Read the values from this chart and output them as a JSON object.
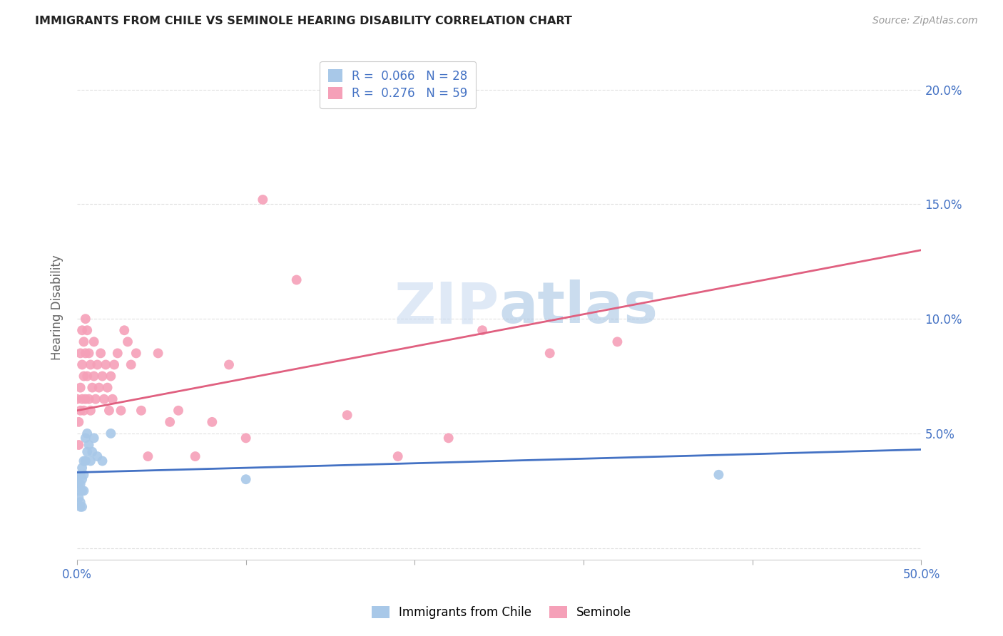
{
  "title": "IMMIGRANTS FROM CHILE VS SEMINOLE HEARING DISABILITY CORRELATION CHART",
  "source": "Source: ZipAtlas.com",
  "ylabel": "Hearing Disability",
  "xlim": [
    0.0,
    0.5
  ],
  "ylim": [
    -0.005,
    0.215
  ],
  "xticks": [
    0.0,
    0.1,
    0.2,
    0.3,
    0.4,
    0.5
  ],
  "xticklabels_show": [
    "0.0%",
    "",
    "",
    "",
    "",
    "50.0%"
  ],
  "yticks_right": [
    0.05,
    0.1,
    0.15,
    0.2
  ],
  "yticklabels_right": [
    "5.0%",
    "10.0%",
    "15.0%",
    "20.0%"
  ],
  "grid_yticks": [
    0.0,
    0.05,
    0.1,
    0.15,
    0.2
  ],
  "legend_r_chile": "0.066",
  "legend_n_chile": "28",
  "legend_r_seminole": "0.276",
  "legend_n_seminole": "59",
  "chile_color": "#a8c8e8",
  "seminole_color": "#f5a0b8",
  "chile_line_color": "#4472c4",
  "seminole_line_color": "#e06080",
  "watermark_part1": "ZIP",
  "watermark_part2": "atlas",
  "chile_scatter_x": [
    0.0,
    0.001,
    0.001,
    0.001,
    0.002,
    0.002,
    0.002,
    0.002,
    0.003,
    0.003,
    0.003,
    0.003,
    0.004,
    0.004,
    0.004,
    0.005,
    0.005,
    0.006,
    0.006,
    0.007,
    0.008,
    0.009,
    0.01,
    0.012,
    0.015,
    0.02,
    0.1,
    0.38
  ],
  "chile_scatter_y": [
    0.03,
    0.028,
    0.025,
    0.022,
    0.032,
    0.028,
    0.02,
    0.018,
    0.035,
    0.03,
    0.025,
    0.018,
    0.038,
    0.032,
    0.025,
    0.048,
    0.038,
    0.05,
    0.042,
    0.045,
    0.038,
    0.042,
    0.048,
    0.04,
    0.038,
    0.05,
    0.03,
    0.032
  ],
  "seminole_scatter_x": [
    0.0,
    0.001,
    0.001,
    0.002,
    0.002,
    0.002,
    0.003,
    0.003,
    0.003,
    0.004,
    0.004,
    0.004,
    0.005,
    0.005,
    0.005,
    0.006,
    0.006,
    0.007,
    0.007,
    0.008,
    0.008,
    0.009,
    0.01,
    0.01,
    0.011,
    0.012,
    0.013,
    0.014,
    0.015,
    0.016,
    0.017,
    0.018,
    0.019,
    0.02,
    0.021,
    0.022,
    0.024,
    0.026,
    0.028,
    0.03,
    0.032,
    0.035,
    0.038,
    0.042,
    0.048,
    0.055,
    0.06,
    0.07,
    0.08,
    0.09,
    0.1,
    0.11,
    0.13,
    0.16,
    0.19,
    0.22,
    0.24,
    0.28,
    0.32
  ],
  "seminole_scatter_y": [
    0.065,
    0.055,
    0.045,
    0.085,
    0.07,
    0.06,
    0.095,
    0.08,
    0.065,
    0.09,
    0.075,
    0.06,
    0.1,
    0.085,
    0.065,
    0.095,
    0.075,
    0.085,
    0.065,
    0.08,
    0.06,
    0.07,
    0.09,
    0.075,
    0.065,
    0.08,
    0.07,
    0.085,
    0.075,
    0.065,
    0.08,
    0.07,
    0.06,
    0.075,
    0.065,
    0.08,
    0.085,
    0.06,
    0.095,
    0.09,
    0.08,
    0.085,
    0.06,
    0.04,
    0.085,
    0.055,
    0.06,
    0.04,
    0.055,
    0.08,
    0.048,
    0.152,
    0.117,
    0.058,
    0.04,
    0.048,
    0.095,
    0.085,
    0.09
  ],
  "chile_trendline_x": [
    0.0,
    0.5
  ],
  "chile_trendline_y_start": 0.033,
  "chile_trendline_y_end": 0.043,
  "seminole_trendline_x": [
    0.0,
    0.5
  ],
  "seminole_trendline_y_start": 0.06,
  "seminole_trendline_y_end": 0.13
}
